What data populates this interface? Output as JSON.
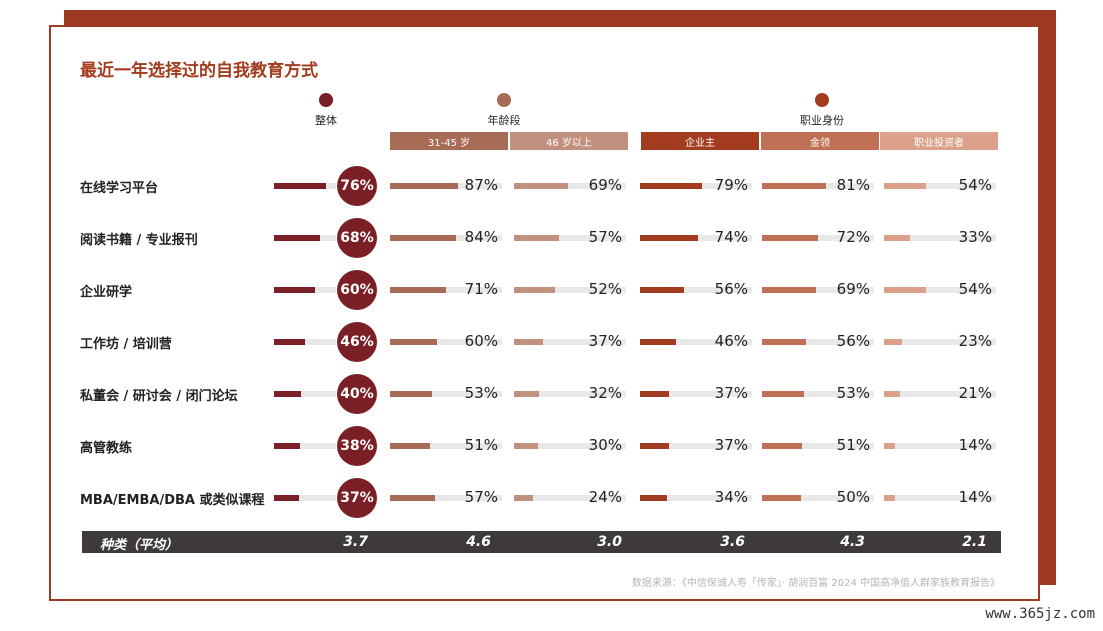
{
  "title": "最近一年选择过的自我教育方式",
  "legend": [
    {
      "label": "整体",
      "color": "#7a1f25"
    },
    {
      "label": "年龄段",
      "color": "#a86b55"
    },
    {
      "label": "职业身份",
      "color": "#a33b1f"
    }
  ],
  "columns": [
    {
      "label": "31-45 岁",
      "header_color": "#a86b55",
      "bar_color": "#a86b55"
    },
    {
      "label": "46 岁以上",
      "header_color": "#c2907e",
      "bar_color": "#c2907e"
    },
    {
      "label": "企业主",
      "header_color": "#a33b1f",
      "bar_color": "#a33b1f"
    },
    {
      "label": "金领",
      "header_color": "#c07055",
      "bar_color": "#c07055"
    },
    {
      "label": "职业投资者",
      "header_color": "#dba18b",
      "bar_color": "#dba18b"
    }
  ],
  "overall_color": "#7a1f25",
  "chart_data": {
    "type": "bar",
    "categories": [
      "在线学习平台",
      "阅读书籍 / 专业报刊",
      "企业研学",
      "工作坊 / 培训营",
      "私董会 / 研讨会 / 闭门论坛",
      "高管教练",
      "MBA/EMBA/DBA 或类似课程"
    ],
    "overall": [
      76,
      68,
      60,
      46,
      40,
      38,
      37
    ],
    "series": [
      {
        "name": "31-45 岁",
        "values": [
          87,
          84,
          71,
          60,
          53,
          51,
          57
        ]
      },
      {
        "name": "46 岁以上",
        "values": [
          69,
          57,
          52,
          37,
          32,
          30,
          24
        ]
      },
      {
        "name": "企业主",
        "values": [
          79,
          74,
          56,
          46,
          37,
          37,
          34
        ]
      },
      {
        "name": "金领",
        "values": [
          81,
          72,
          69,
          56,
          53,
          51,
          50
        ]
      },
      {
        "name": "职业投资者",
        "values": [
          54,
          33,
          54,
          23,
          21,
          14,
          14
        ]
      }
    ],
    "unit": "%",
    "totals_label": "种类（平均）",
    "totals": [
      "3.7",
      "4.6",
      "3.0",
      "3.6",
      "4.3",
      "2.1"
    ]
  },
  "source": "数据来源：《中信保诚人寿「传家」· 胡润百富 2024 中国高净值人群家族教育报告》",
  "watermark": "www.365jz.com"
}
